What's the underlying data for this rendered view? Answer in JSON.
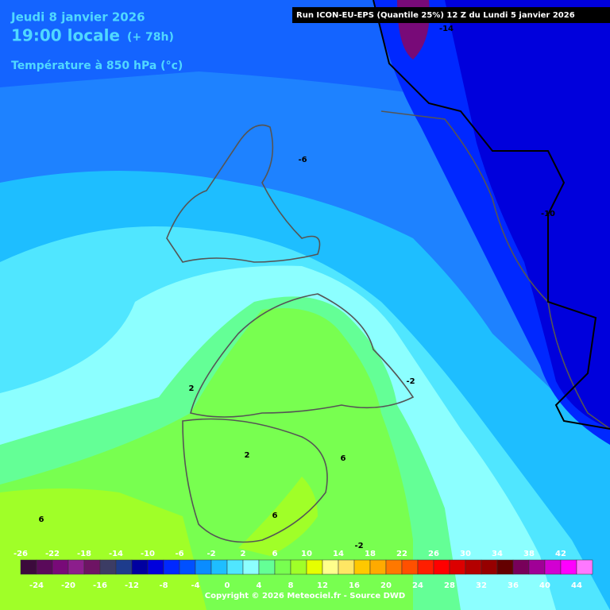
{
  "header": {
    "date": "Jeudi 8 janvier 2026",
    "time": "19:00 locale",
    "lead": "(+ 78h)",
    "field": "Température à 850 hPa (°c)",
    "run": "Run ICON-EU-EPS (Quantile 25%) 12 Z du Lundi 5 janvier 2026"
  },
  "contour_labels": [
    -14,
    -6,
    -10,
    2,
    -2,
    2,
    6,
    6,
    6,
    -2
  ],
  "legend": {
    "labels": [
      -26,
      -24,
      -22,
      -20,
      -18,
      -16,
      -14,
      -12,
      -10,
      -8,
      -6,
      -4,
      -2,
      0,
      2,
      4,
      6,
      8,
      10,
      12,
      14,
      16,
      18,
      20,
      22,
      24,
      26,
      28,
      30,
      32,
      34,
      36,
      38,
      40,
      42,
      44
    ],
    "colors": [
      "#3c0a3c",
      "#5a0a5a",
      "#780a78",
      "#8c1e8c",
      "#6e1464",
      "#3c3c64",
      "#1e3c8c",
      "#0000a0",
      "#0000dc",
      "#0028ff",
      "#0050ff",
      "#0a8cff",
      "#1ebeff",
      "#50e6ff",
      "#8cffff",
      "#64ff96",
      "#78ff50",
      "#a0ff28",
      "#e6ff00",
      "#ffff8c",
      "#ffe664",
      "#ffc800",
      "#ffaa00",
      "#ff7800",
      "#ff5000",
      "#ff1e00",
      "#ff0000",
      "#dc0000",
      "#b40000",
      "#960000",
      "#640000",
      "#78005a",
      "#a00096",
      "#d200d2",
      "#ff00ff",
      "#ff78ff"
    ]
  },
  "footer": {
    "copyright": "Copyright © 2026 Meteociel.fr - Source DWD"
  }
}
